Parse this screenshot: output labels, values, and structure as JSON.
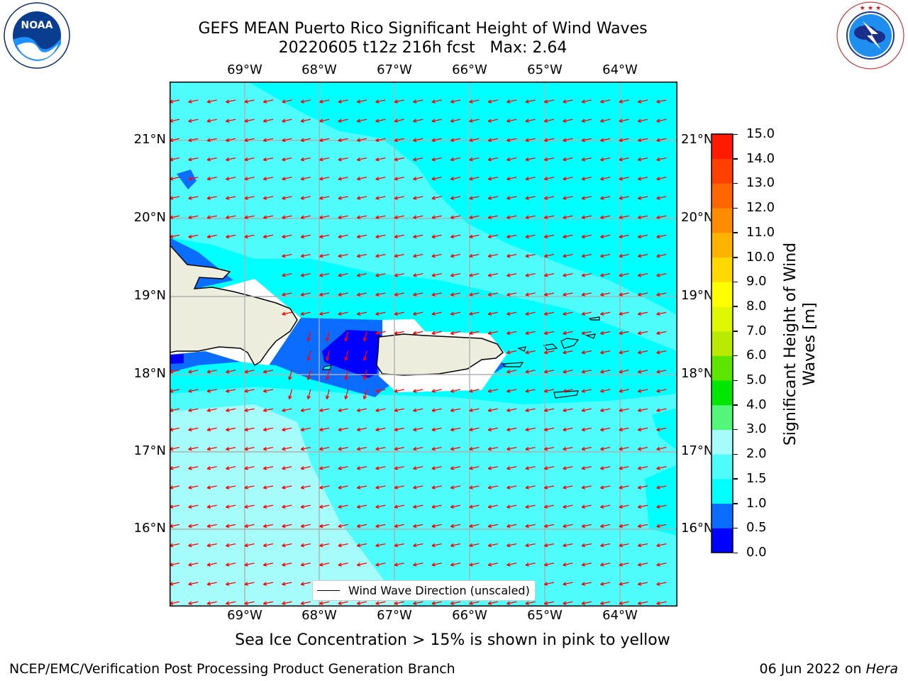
{
  "title": {
    "line1": "GEFS MEAN Puerto Rico Significant Height of Wind Waves",
    "line2": "20220605 t12z 216h fcst   Max: 2.64"
  },
  "logos": {
    "left": "NOAA",
    "left_ring": "NATIONAL OCEANIC AND ATMOSPHERIC ADMINISTRATION · U.S. DEPARTMENT OF COMMERCE",
    "right_ring": "NATIONAL WEATHER SERVICE"
  },
  "map": {
    "lon_labels": [
      "69°W",
      "68°W",
      "67°W",
      "66°W",
      "65°W",
      "64°W"
    ],
    "lat_labels": [
      "21°N",
      "20°N",
      "19°N",
      "18°N",
      "17°N",
      "16°N"
    ],
    "legend": "Wind Wave Direction (unscaled)",
    "colors": {
      "ocean_low": "#00ffff",
      "ocean_mid": "#4efcfc",
      "ocean_high": "#a6fbfb",
      "band_0_5_1": "#0a6dff",
      "band_0_0_5": "#0000ff",
      "land": "#eeeedf",
      "arrow": "#ff0000",
      "grid": "#b0b0b0"
    }
  },
  "colorbar": {
    "label": "Significant Height of Wind Waves [m]",
    "ticks": [
      "15.0",
      "14.0",
      "13.0",
      "12.0",
      "11.0",
      "10.0",
      "9.0",
      "8.0",
      "7.0",
      "6.0",
      "5.0",
      "4.0",
      "3.0",
      "2.0",
      "1.5",
      "1.0",
      "0.5",
      "0.0"
    ],
    "colors": [
      "#0000ff",
      "#0a6dff",
      "#00ffff",
      "#4efcfc",
      "#a6fbfb",
      "#52f77a",
      "#00e600",
      "#5ee600",
      "#b8eb00",
      "#dff700",
      "#ffff00",
      "#ffd900",
      "#ffb300",
      "#ff8c00",
      "#ff6600",
      "#ff4000",
      "#ff1a00"
    ]
  },
  "caption": "Sea Ice Concentration > 15% is shown in pink to yellow",
  "footer": {
    "left": "NCEP/EMC/Verification Post Processing Product Generation Branch",
    "right_prefix": "06 Jun 2022 on ",
    "right_host": "Hera"
  }
}
